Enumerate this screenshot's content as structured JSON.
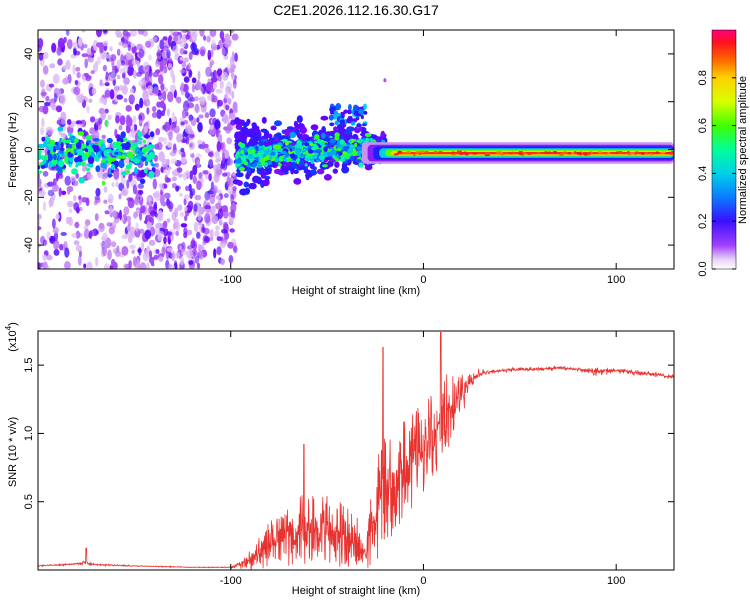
{
  "figure_title": "C2E1.2026.112.16.30.G17",
  "chart_data": [
    {
      "type": "heatmap",
      "name": "spectrogram",
      "title": "C2E1.2026.112.16.30.G17",
      "xlabel": "Height of straight line (km)",
      "ylabel": "Frequency (Hz)",
      "xlim": [
        -200,
        130
      ],
      "ylim": [
        -50,
        50
      ],
      "xticks": [
        -100,
        0,
        100
      ],
      "xtick_labels": [
        "-100",
        "0",
        "100"
      ],
      "yticks": [
        40,
        20,
        0,
        -20,
        -40
      ],
      "ytick_labels": [
        "40",
        "20",
        "0",
        "-20",
        "-40"
      ],
      "regions": [
        {
          "x_range": [
            -200,
            -97
          ],
          "description": "scattered low amplitude noise",
          "amplitude": [
            0.1,
            0.3
          ]
        },
        {
          "x_range": [
            -97,
            -20
          ],
          "description": "broadening signal band near 0 Hz",
          "amplitude": [
            0.3,
            0.8
          ]
        },
        {
          "x_range": [
            -20,
            130
          ],
          "description": "narrow strong carrier near -2 Hz",
          "amplitude": [
            0.5,
            1.0
          ]
        }
      ],
      "colorbar": {
        "label": "Normalized spectral amplitude",
        "range": [
          0,
          1
        ],
        "ticks": [
          0.0,
          0.2,
          0.4,
          0.6,
          0.8
        ],
        "tick_labels": [
          "0.0",
          "0.2",
          "0.4",
          "0.6",
          "0.8"
        ],
        "colors": [
          "#ffffff",
          "#cf8cf0",
          "#7a00ff",
          "#1a1aff",
          "#00bfff",
          "#00ffb0",
          "#33ff00",
          "#d0ff00",
          "#ffe000",
          "#ff8000",
          "#ff1a00",
          "#ff0078"
        ]
      }
    },
    {
      "type": "line",
      "name": "snr",
      "xlabel": "Height of straight line (km)",
      "ylabel": "SNR (10 * v/v)",
      "scale_label_base": "(x10",
      "scale_label_exp": "4",
      "scale_label_close": ")",
      "xlim": [
        -200,
        130
      ],
      "ylim": [
        0,
        1.75
      ],
      "xticks": [
        -100,
        0,
        100
      ],
      "xtick_labels": [
        "-100",
        "0",
        "100"
      ],
      "yticks": [
        0.5,
        1.0,
        1.5
      ],
      "ytick_labels": [
        "0.5",
        "1.0",
        "1.5"
      ],
      "color": "#e8322f",
      "series": [
        {
          "name": "SNR",
          "x": [
            -200,
            -185,
            -175,
            -170,
            -150,
            -120,
            -100,
            -92,
            -85,
            -80,
            -75,
            -70,
            -65,
            -60,
            -55,
            -50,
            -45,
            -40,
            -35,
            -30,
            -27,
            -24,
            -22,
            -20,
            -18,
            -15,
            -12,
            -9,
            -6,
            -3,
            0,
            3,
            6,
            9,
            12,
            15,
            18,
            21,
            24,
            27,
            30,
            35,
            40,
            50,
            60,
            70,
            80,
            88,
            95,
            100,
            108,
            115,
            122,
            130
          ],
          "y": [
            0.03,
            0.04,
            0.05,
            0.04,
            0.03,
            0.02,
            0.02,
            0.05,
            0.12,
            0.18,
            0.22,
            0.25,
            0.28,
            0.3,
            0.3,
            0.29,
            0.28,
            0.25,
            0.22,
            0.1,
            0.25,
            0.45,
            0.55,
            0.58,
            0.6,
            0.65,
            0.7,
            0.75,
            0.8,
            0.85,
            0.9,
            0.95,
            1.0,
            1.1,
            1.15,
            1.2,
            1.25,
            1.3,
            1.38,
            1.42,
            1.44,
            1.45,
            1.46,
            1.47,
            1.47,
            1.48,
            1.47,
            1.45,
            1.46,
            1.46,
            1.45,
            1.44,
            1.43,
            1.41
          ],
          "noise": [
            0.003,
            0.004,
            0.01,
            0.005,
            0.003,
            0.002,
            0.003,
            0.04,
            0.1,
            0.14,
            0.16,
            0.18,
            0.2,
            0.2,
            0.2,
            0.2,
            0.2,
            0.18,
            0.15,
            0.05,
            0.25,
            0.3,
            0.3,
            0.3,
            0.3,
            0.28,
            0.28,
            0.28,
            0.28,
            0.28,
            0.28,
            0.26,
            0.26,
            0.24,
            0.22,
            0.2,
            0.15,
            0.1,
            0.05,
            0.03,
            0.02,
            0.01,
            0.01,
            0.01,
            0.01,
            0.01,
            0.01,
            0.03,
            0.015,
            0.01,
            0.015,
            0.015,
            0.012,
            0.012
          ]
        }
      ]
    }
  ]
}
